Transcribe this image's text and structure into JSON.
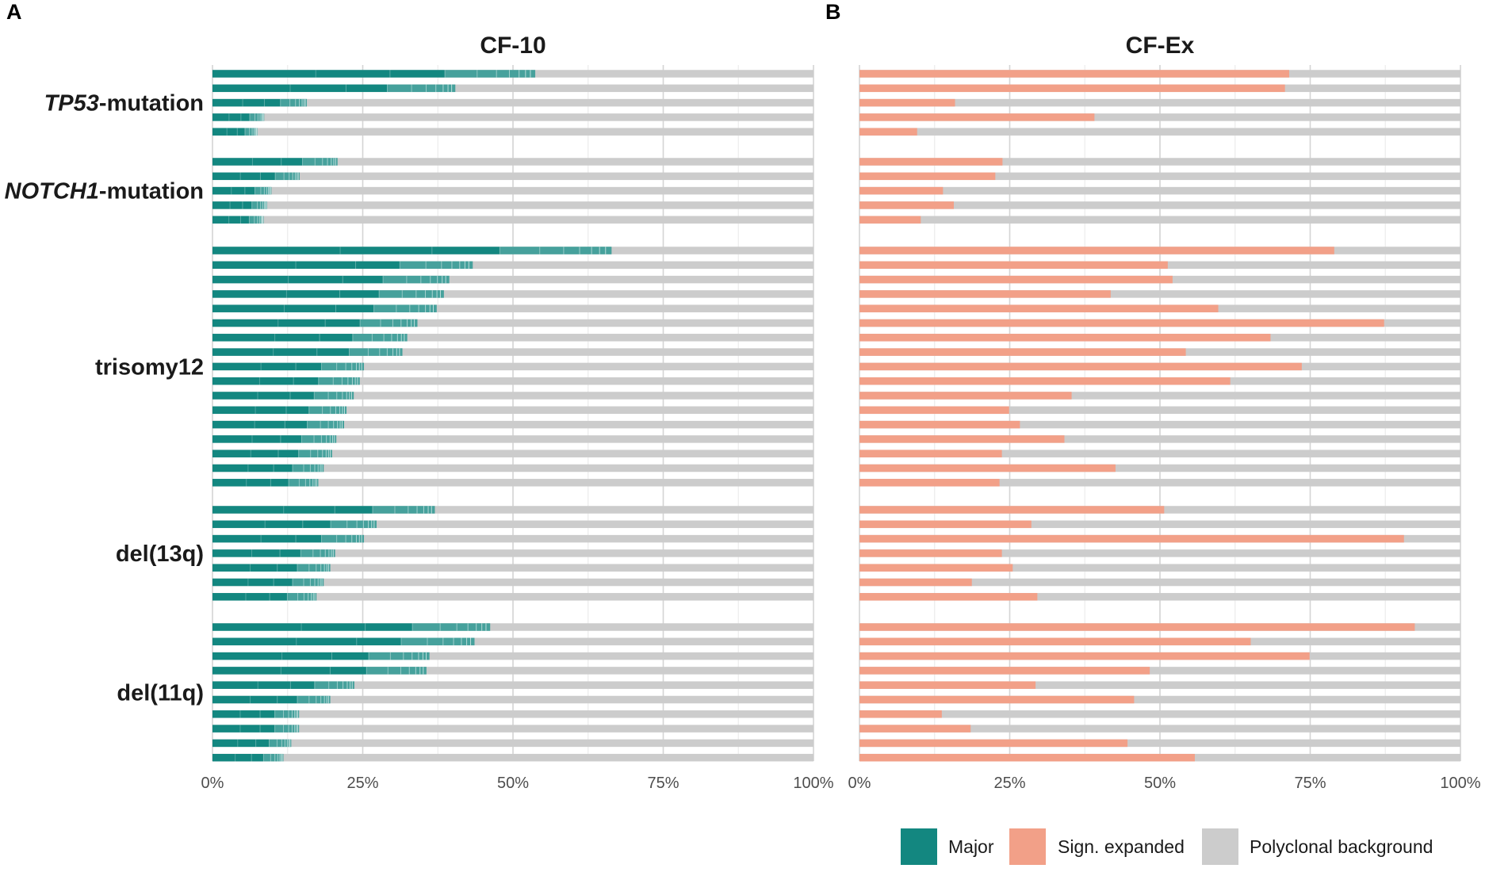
{
  "chart_data": {
    "type": "bar",
    "orientation": "horizontal",
    "stacked": true,
    "groups": [
      {
        "name": "TP53",
        "suffix": "-mutation",
        "name_italic": true
      },
      {
        "name": "NOTCH1",
        "suffix": "-mutation",
        "name_italic": true
      },
      {
        "name": "trisomy12",
        "suffix": "",
        "name_italic": false
      },
      {
        "name": "del(13q)",
        "suffix": "",
        "name_italic": false
      },
      {
        "name": "del(11q)",
        "suffix": "",
        "name_italic": false
      }
    ],
    "x_ticks": [
      "0%",
      "25%",
      "50%",
      "75%",
      "100%"
    ],
    "xlim": [
      0,
      100
    ],
    "legend": [
      {
        "label": "Major",
        "color": "#138780"
      },
      {
        "label": "Sign. expanded",
        "color": "#F2A088"
      },
      {
        "label": "Polyclonal background",
        "color": "#CCCCCC"
      }
    ],
    "legend_position": "bottom-right",
    "background_color": "#CCCCCC",
    "panels": [
      {
        "letter": "A",
        "title": "CF-10",
        "series": "Major",
        "color": "#138780",
        "values": [
          [
            53.7,
            40.4,
            15.7,
            8.6,
            7.5
          ],
          [
            20.8,
            14.5,
            9.8,
            9.1,
            8.5
          ],
          [
            66.4,
            43.3,
            39.4,
            38.5,
            37.3,
            34.1,
            32.4,
            31.6,
            25.2,
            24.5,
            23.5,
            22.3,
            21.9,
            20.6,
            19.9,
            18.5,
            17.6
          ],
          [
            37.0,
            27.3,
            25.2,
            20.4,
            19.6,
            18.5,
            17.3
          ],
          [
            46.2,
            43.6,
            36.1,
            35.6,
            23.6,
            19.6,
            14.4,
            14.4,
            13.1,
            11.8
          ]
        ]
      },
      {
        "letter": "B",
        "title": "CF-Ex",
        "series": "Sign. expanded",
        "color": "#F2A088",
        "values": [
          [
            71.5,
            70.8,
            15.9,
            39.1,
            9.6
          ],
          [
            23.8,
            22.6,
            13.9,
            15.7,
            10.2
          ],
          [
            79.0,
            51.3,
            52.1,
            41.8,
            59.7,
            87.3,
            68.4,
            54.3,
            73.6,
            61.7,
            35.3,
            24.9,
            26.7,
            34.1,
            23.7,
            42.6,
            23.3
          ],
          [
            50.7,
            28.6,
            90.6,
            23.7,
            25.5,
            18.7,
            29.6
          ],
          [
            92.4,
            65.1,
            74.9,
            48.3,
            29.3,
            45.7,
            13.7,
            18.5,
            44.6,
            55.8
          ]
        ]
      }
    ]
  }
}
